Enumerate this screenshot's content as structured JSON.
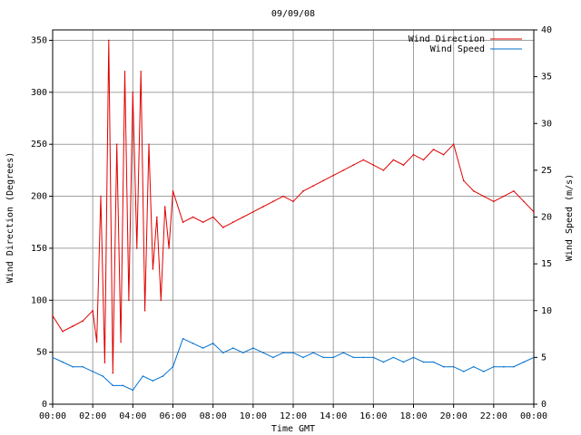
{
  "chart_data": {
    "type": "line",
    "title": "09/09/08",
    "xlabel": "Time GMT",
    "ylabel_left": "Wind Direction (Degrees)",
    "ylabel_right": "Wind Speed (m/s)",
    "x_ticks": [
      "00:00",
      "02:00",
      "04:00",
      "06:00",
      "08:00",
      "10:00",
      "12:00",
      "14:00",
      "16:00",
      "18:00",
      "20:00",
      "22:00",
      "00:00"
    ],
    "xlim_hours": [
      0,
      24
    ],
    "ylim_left": [
      0,
      360
    ],
    "ylim_right": [
      0,
      40
    ],
    "yticks_left": [
      0,
      50,
      100,
      150,
      200,
      250,
      300,
      350
    ],
    "yticks_right": [
      0,
      5,
      10,
      15,
      20,
      25,
      30,
      35,
      40
    ],
    "grid": true,
    "legend_position": "top-right",
    "series": [
      {
        "name": "Wind Direction",
        "axis": "left",
        "color": "#e00000",
        "x_hours": [
          0,
          0.5,
          1,
          1.5,
          2,
          2.2,
          2.4,
          2.6,
          2.8,
          3,
          3.2,
          3.4,
          3.6,
          3.8,
          4,
          4.2,
          4.4,
          4.6,
          4.8,
          5,
          5.2,
          5.4,
          5.6,
          5.8,
          6,
          6.5,
          7,
          7.5,
          8,
          8.5,
          9,
          9.5,
          10,
          10.5,
          11,
          11.5,
          12,
          12.5,
          13,
          13.5,
          14,
          14.5,
          15,
          15.5,
          16,
          16.5,
          17,
          17.5,
          18,
          18.5,
          19,
          19.5,
          20,
          20.5,
          21,
          21.5,
          22,
          22.5,
          23,
          23.5,
          24
        ],
        "values": [
          85,
          70,
          75,
          80,
          90,
          60,
          200,
          40,
          350,
          30,
          250,
          60,
          320,
          100,
          300,
          150,
          320,
          90,
          250,
          130,
          180,
          100,
          190,
          150,
          205,
          175,
          180,
          175,
          180,
          170,
          175,
          180,
          185,
          190,
          195,
          200,
          195,
          205,
          210,
          215,
          220,
          225,
          230,
          235,
          230,
          225,
          235,
          230,
          240,
          235,
          245,
          240,
          250,
          215,
          205,
          200,
          195,
          200,
          205,
          195,
          185
        ]
      },
      {
        "name": "Wind Speed",
        "axis": "right",
        "color": "#0070d0",
        "x_hours": [
          0,
          0.5,
          1,
          1.5,
          2,
          2.5,
          3,
          3.5,
          4,
          4.5,
          5,
          5.5,
          6,
          6.5,
          7,
          7.5,
          8,
          8.5,
          9,
          9.5,
          10,
          10.5,
          11,
          11.5,
          12,
          12.5,
          13,
          13.5,
          14,
          14.5,
          15,
          15.5,
          16,
          16.5,
          17,
          17.5,
          18,
          18.5,
          19,
          19.5,
          20,
          20.5,
          21,
          21.5,
          22,
          22.5,
          23,
          23.5,
          24
        ],
        "values": [
          5,
          4.5,
          4,
          4,
          3.5,
          3,
          2,
          2,
          1.5,
          3,
          2.5,
          3,
          4,
          7,
          6.5,
          6,
          6.5,
          5.5,
          6,
          5.5,
          6,
          5.5,
          5,
          5.5,
          5.5,
          5,
          5.5,
          5,
          5,
          5.5,
          5,
          5,
          5,
          4.5,
          5,
          4.5,
          5,
          4.5,
          4.5,
          4,
          4,
          3.5,
          4,
          3.5,
          4,
          4,
          4,
          4.5,
          5
        ]
      }
    ]
  }
}
